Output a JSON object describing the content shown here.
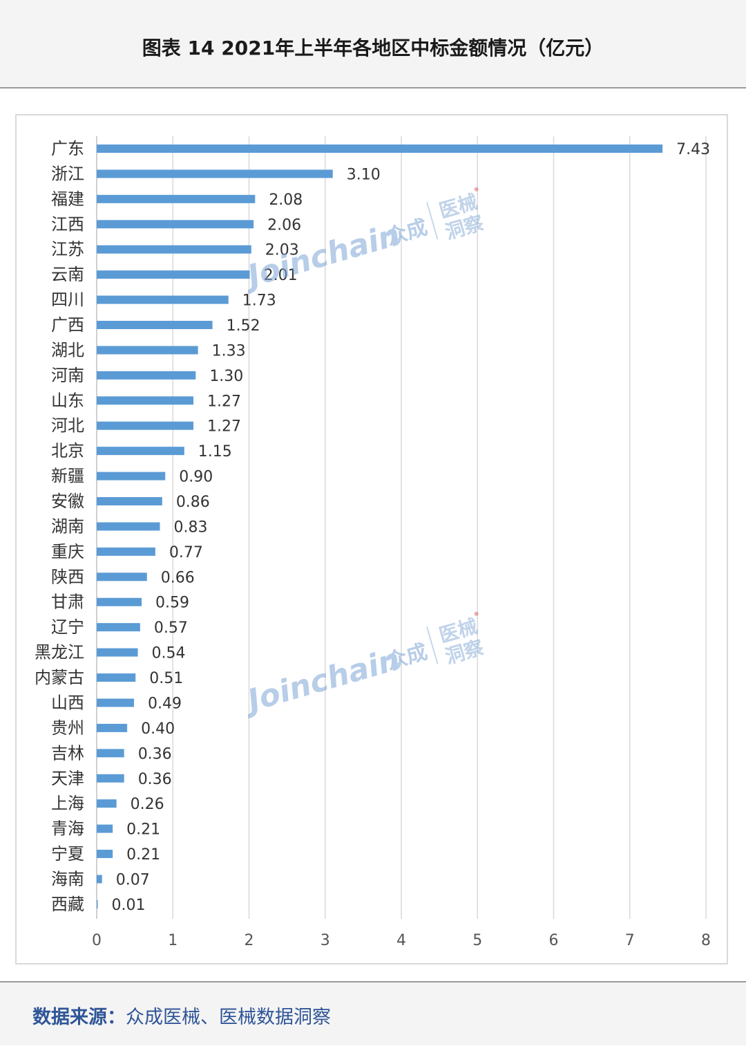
{
  "header": {
    "title": "图表 14  2021年上半年各地区中标金额情况（亿元）"
  },
  "chart_data": {
    "type": "bar",
    "orientation": "horizontal",
    "title": "图表 14  2021年上半年各地区中标金额情况（亿元）",
    "unit": "亿元",
    "categories": [
      "广东",
      "浙江",
      "福建",
      "江西",
      "江苏",
      "云南",
      "四川",
      "广西",
      "湖北",
      "河南",
      "山东",
      "河北",
      "北京",
      "新疆",
      "安徽",
      "湖南",
      "重庆",
      "陕西",
      "甘肃",
      "辽宁",
      "黑龙江",
      "内蒙古",
      "山西",
      "贵州",
      "吉林",
      "天津",
      "上海",
      "青海",
      "宁夏",
      "海南",
      "西藏"
    ],
    "values": [
      7.43,
      3.1,
      2.08,
      2.06,
      2.03,
      2.01,
      1.73,
      1.52,
      1.33,
      1.3,
      1.27,
      1.27,
      1.15,
      0.9,
      0.86,
      0.83,
      0.77,
      0.66,
      0.59,
      0.57,
      0.54,
      0.51,
      0.49,
      0.4,
      0.36,
      0.36,
      0.26,
      0.21,
      0.21,
      0.07,
      0.01
    ],
    "value_labels": [
      "7.43",
      "3.10",
      "2.08",
      "2.06",
      "2.03",
      "2.01",
      "1.73",
      "1.52",
      "1.33",
      "1.30",
      "1.27",
      "1.27",
      "1.15",
      "0.90",
      "0.86",
      "0.83",
      "0.77",
      "0.66",
      "0.59",
      "0.57",
      "0.54",
      "0.51",
      "0.49",
      "0.40",
      "0.36",
      "0.36",
      "0.26",
      "0.21",
      "0.21",
      "0.07",
      "0.01"
    ],
    "xlim": [
      0,
      8
    ],
    "xticks": [
      "0",
      "1",
      "2",
      "3",
      "4",
      "5",
      "6",
      "7",
      "8"
    ],
    "grid": true,
    "bar_color": "#5b9bd5",
    "data_labels": true
  },
  "watermark": {
    "brand": "Joinchain",
    "cn_name": "众成",
    "tag_line1": "医械",
    "tag_line2": "洞察"
  },
  "footer": {
    "source_label": "数据来源：",
    "source_text": "众成医械、医械数据洞察"
  }
}
